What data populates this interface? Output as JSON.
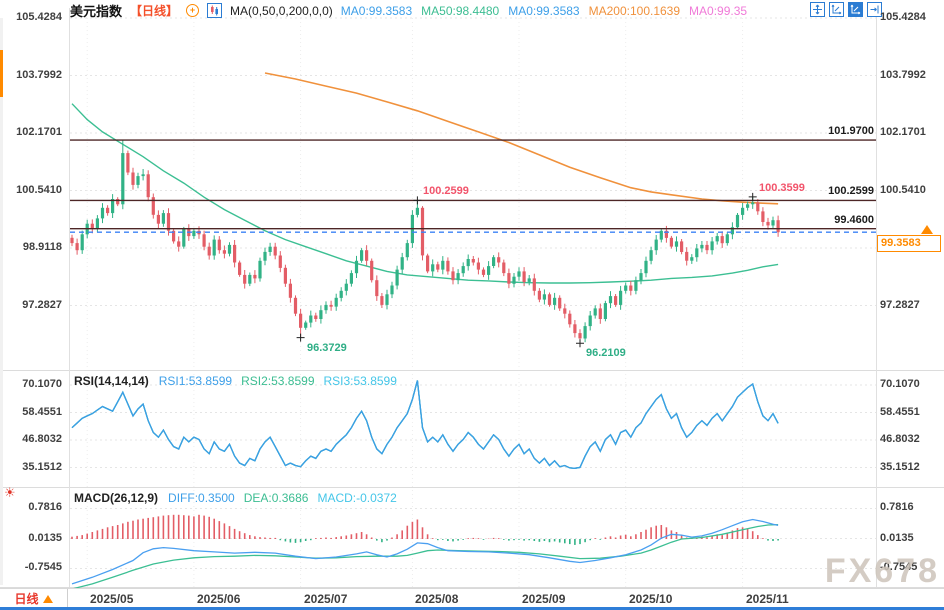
{
  "header": {
    "title": "美元指数",
    "period": "【日线】",
    "plus_icon": "+",
    "ma_settings": "MA(0,50,0,200,0,0)",
    "ma_values": [
      {
        "label": "MA0:99.3583",
        "color": "#3d9fe8"
      },
      {
        "label": "MA50:98.4480",
        "color": "#3cbd92"
      },
      {
        "label": "MA0:99.3583",
        "color": "#3d9fe8"
      },
      {
        "label": "MA200:100.1639",
        "color": "#f0913c"
      },
      {
        "label": "MA0:99.35",
        "color": "#f07ad8"
      }
    ],
    "toolbar_icons": [
      "move-tool",
      "axis-range",
      "axis-range-active",
      "goto-latest"
    ]
  },
  "main_panel": {
    "y_ticks": [
      105.4284,
      103.7992,
      102.1701,
      100.541,
      98.9118,
      97.2827
    ],
    "price_lines": [
      {
        "value": 101.97,
        "label": "101.9700"
      },
      {
        "value": 100.2599,
        "label": "100.2599"
      },
      {
        "value": 99.46,
        "label": "99.4600"
      }
    ],
    "markers": [
      {
        "d": 68,
        "price": 100.2599,
        "pos": "top",
        "label": "100.2599",
        "color": "#f2546b"
      },
      {
        "d": 134,
        "price": 100.3599,
        "pos": "top",
        "label": "100.3599",
        "color": "#f2546b"
      },
      {
        "d": 45,
        "price": 96.3729,
        "pos": "bottom",
        "label": "96.3729",
        "color": "#2fae86"
      },
      {
        "d": 100,
        "price": 96.2109,
        "pos": "bottom",
        "label": "96.2109",
        "color": "#2fae86"
      }
    ],
    "current_price": {
      "value": "99.3583",
      "price": 99.3583,
      "color": "#ff8a00"
    }
  },
  "rsi_panel": {
    "title": "RSI(14,14,14)",
    "values": [
      {
        "label": "RSI1:53.8599",
        "color": "#3d9fe8"
      },
      {
        "label": "RSI2:53.8599",
        "color": "#3cbd92"
      },
      {
        "label": "RSI3:53.8599",
        "color": "#45c6e8"
      }
    ],
    "y_ticks": [
      70.107,
      58.4551,
      46.8032,
      35.1512
    ]
  },
  "macd_panel": {
    "title": "MACD(26,12,9)",
    "values": [
      {
        "label": "DIFF:0.3500",
        "color": "#3d9fe8"
      },
      {
        "label": "DEA:0.3686",
        "color": "#3cbd92"
      },
      {
        "label": "MACD:-0.0372",
        "color": "#45c6e8"
      }
    ],
    "y_ticks": [
      0.7816,
      0.0135,
      -0.7545
    ]
  },
  "bottom_bar": {
    "period_label": "日线",
    "months": [
      {
        "label": "2025/05",
        "d": 3
      },
      {
        "label": "2025/06",
        "d": 24
      },
      {
        "label": "2025/07",
        "d": 45
      },
      {
        "label": "2025/08",
        "d": 67
      },
      {
        "label": "2025/09",
        "d": 88
      },
      {
        "label": "2025/10",
        "d": 109
      },
      {
        "label": "2025/11",
        "d": 132
      }
    ]
  },
  "watermark": "FX678",
  "chart_data": {
    "type": "candlestick",
    "instrument": "美元指数",
    "timeframe": "日线",
    "candles": {
      "first_open": 99.2,
      "closes": [
        99.05,
        98.85,
        99.3,
        99.6,
        99.45,
        99.75,
        100.05,
        99.9,
        100.3,
        100.15,
        101.6,
        101.05,
        100.7,
        100.95,
        101.0,
        100.35,
        99.85,
        99.6,
        99.9,
        99.4,
        99.1,
        98.95,
        99.45,
        99.25,
        99.4,
        99.3,
        98.95,
        98.7,
        99.15,
        98.85,
        98.75,
        99.0,
        98.5,
        98.15,
        97.9,
        98.15,
        98.05,
        98.55,
        98.8,
        98.95,
        98.7,
        98.35,
        97.9,
        97.5,
        97.05,
        96.65,
        96.8,
        97.0,
        96.9,
        97.15,
        97.3,
        97.25,
        97.5,
        97.7,
        97.9,
        98.2,
        98.55,
        98.85,
        98.55,
        98.0,
        97.55,
        97.3,
        97.6,
        97.85,
        98.3,
        98.65,
        99.05,
        99.85,
        100.05,
        98.7,
        98.25,
        98.45,
        98.3,
        98.55,
        98.25,
        98.0,
        98.2,
        98.4,
        98.6,
        98.5,
        98.3,
        98.15,
        98.4,
        98.65,
        98.5,
        98.2,
        97.9,
        98.1,
        98.25,
        97.95,
        98.05,
        97.7,
        97.45,
        97.6,
        97.3,
        97.5,
        97.2,
        97.05,
        96.75,
        96.5,
        96.35,
        96.7,
        97.0,
        97.2,
        96.9,
        97.35,
        97.55,
        97.3,
        97.7,
        97.85,
        97.7,
        98.0,
        98.2,
        98.55,
        98.85,
        99.15,
        99.4,
        99.2,
        98.95,
        99.1,
        98.8,
        98.55,
        98.65,
        98.9,
        99.0,
        98.85,
        99.1,
        99.25,
        99.05,
        99.3,
        99.5,
        99.85,
        100.05,
        100.15,
        100.2,
        99.95,
        99.65,
        99.55,
        99.7,
        99.36
      ],
      "wick_overrides": {
        "10": {
          "h": 101.97
        },
        "14": {
          "h": 101.15
        },
        "45": {
          "l": 96.3729
        },
        "68": {
          "h": 100.2599
        },
        "69": {
          "h": 100.1
        },
        "100": {
          "l": 96.2109
        },
        "134": {
          "h": 100.3599
        }
      }
    },
    "ma50": [
      [
        0,
        103.0
      ],
      [
        3,
        102.55
      ],
      [
        6,
        102.2
      ],
      [
        10,
        101.85
      ],
      [
        14,
        101.5
      ],
      [
        18,
        101.1
      ],
      [
        22,
        100.75
      ],
      [
        26,
        100.35
      ],
      [
        30,
        100.0
      ],
      [
        34,
        99.7
      ],
      [
        38,
        99.4
      ],
      [
        42,
        99.15
      ],
      [
        46,
        98.95
      ],
      [
        50,
        98.75
      ],
      [
        54,
        98.55
      ],
      [
        58,
        98.4
      ],
      [
        62,
        98.25
      ],
      [
        66,
        98.15
      ],
      [
        70,
        98.1
      ],
      [
        74,
        98.05
      ],
      [
        78,
        98.0
      ],
      [
        82,
        97.98
      ],
      [
        86,
        97.95
      ],
      [
        90,
        97.93
      ],
      [
        94,
        97.92
      ],
      [
        98,
        97.92
      ],
      [
        102,
        97.93
      ],
      [
        106,
        97.95
      ],
      [
        110,
        97.97
      ],
      [
        114,
        98.0
      ],
      [
        118,
        98.05
      ],
      [
        122,
        98.08
      ],
      [
        126,
        98.12
      ],
      [
        130,
        98.2
      ],
      [
        133,
        98.28
      ],
      [
        136,
        98.38
      ],
      [
        139,
        98.448
      ]
    ],
    "ma200": [
      [
        38,
        103.87
      ],
      [
        44,
        103.7
      ],
      [
        50,
        103.5
      ],
      [
        56,
        103.3
      ],
      [
        62,
        103.05
      ],
      [
        68,
        102.8
      ],
      [
        74,
        102.5
      ],
      [
        80,
        102.2
      ],
      [
        86,
        101.9
      ],
      [
        92,
        101.55
      ],
      [
        98,
        101.2
      ],
      [
        104,
        100.9
      ],
      [
        110,
        100.62
      ],
      [
        114,
        100.5
      ],
      [
        118,
        100.42
      ],
      [
        124,
        100.3
      ],
      [
        128,
        100.25
      ],
      [
        132,
        100.21
      ],
      [
        136,
        100.18
      ],
      [
        139,
        100.164
      ]
    ],
    "rsi": [
      52,
      54,
      56,
      57,
      58,
      59.5,
      61,
      60,
      59,
      63,
      67,
      62,
      57,
      60,
      62,
      55,
      50,
      48,
      51,
      47,
      44,
      43,
      48,
      46,
      48,
      47,
      43,
      41,
      46,
      43,
      42,
      45,
      40,
      37,
      36,
      39,
      38,
      43,
      46,
      48,
      44,
      40,
      36,
      37,
      36,
      35.5,
      38,
      40,
      39,
      42,
      43,
      42,
      45,
      47,
      49,
      52,
      56,
      59,
      55,
      48,
      43,
      41,
      45,
      48,
      52,
      55,
      58,
      64,
      72,
      52,
      46,
      48,
      46,
      49,
      45,
      42,
      45,
      47,
      50,
      48,
      45,
      43,
      46,
      49,
      47,
      43,
      40,
      43,
      45,
      41,
      43,
      39,
      37,
      39,
      36,
      38,
      35.5,
      36,
      35,
      34.8,
      35.2,
      40,
      44,
      46,
      42,
      47,
      49,
      45,
      50,
      51,
      48,
      52,
      54,
      58,
      61,
      64,
      66,
      60,
      56,
      58,
      52,
      48,
      50,
      53,
      55,
      53,
      56,
      58,
      55,
      58,
      61,
      65,
      67,
      69,
      70.5,
      63,
      57,
      55,
      58,
      53.86
    ],
    "macd_hist": [
      0.06,
      0.08,
      0.1,
      0.14,
      0.18,
      0.22,
      0.26,
      0.3,
      0.33,
      0.36,
      0.4,
      0.44,
      0.47,
      0.5,
      0.52,
      0.54,
      0.56,
      0.58,
      0.6,
      0.61,
      0.62,
      0.62,
      0.61,
      0.6,
      0.58,
      0.62,
      0.6,
      0.57,
      0.52,
      0.46,
      0.4,
      0.33,
      0.26,
      0.2,
      0.15,
      0.1,
      0.07,
      0.05,
      0.04,
      0.03,
      0.03,
      -0.03,
      -0.06,
      -0.09,
      -0.1,
      -0.08,
      -0.05,
      -0.03,
      0.02,
      0.03,
      0.04,
      0.03,
      0.05,
      0.07,
      0.09,
      0.12,
      0.15,
      0.18,
      0.12,
      0.04,
      -0.04,
      -0.08,
      -0.04,
      0.04,
      0.12,
      0.22,
      0.34,
      0.44,
      0.5,
      0.3,
      0.12,
      0.02,
      -0.03,
      -0.02,
      -0.05,
      -0.06,
      -0.04,
      -0.02,
      0.02,
      0.03,
      0.02,
      -0.02,
      0.01,
      0.03,
      0.02,
      -0.02,
      -0.04,
      -0.03,
      -0.02,
      -0.04,
      -0.03,
      -0.05,
      -0.07,
      -0.05,
      -0.08,
      -0.06,
      -0.09,
      -0.11,
      -0.13,
      -0.15,
      -0.13,
      -0.08,
      -0.03,
      0.02,
      -0.02,
      0.04,
      0.07,
      0.04,
      0.09,
      0.11,
      0.07,
      0.12,
      0.18,
      0.24,
      0.3,
      0.34,
      0.36,
      0.3,
      0.22,
      0.18,
      0.1,
      0.04,
      0.02,
      0.04,
      0.06,
      0.04,
      0.08,
      0.12,
      0.1,
      0.16,
      0.22,
      0.28,
      0.3,
      0.26,
      0.2,
      0.1,
      0.02,
      -0.04,
      -0.05,
      -0.0372
    ],
    "macd_diff": [
      [
        0,
        -1.15
      ],
      [
        4,
        -0.98
      ],
      [
        8,
        -0.78
      ],
      [
        12,
        -0.55
      ],
      [
        14,
        -0.35
      ],
      [
        16,
        -0.25
      ],
      [
        18,
        -0.22
      ],
      [
        20,
        -0.24
      ],
      [
        24,
        -0.3
      ],
      [
        28,
        -0.33
      ],
      [
        32,
        -0.36
      ],
      [
        36,
        -0.34
      ],
      [
        40,
        -0.36
      ],
      [
        44,
        -0.44
      ],
      [
        48,
        -0.5
      ],
      [
        52,
        -0.46
      ],
      [
        56,
        -0.38
      ],
      [
        58,
        -0.33
      ],
      [
        60,
        -0.4
      ],
      [
        62,
        -0.46
      ],
      [
        64,
        -0.38
      ],
      [
        66,
        -0.26
      ],
      [
        68,
        -0.1
      ],
      [
        70,
        -0.12
      ],
      [
        72,
        -0.22
      ],
      [
        74,
        -0.3
      ],
      [
        78,
        -0.32
      ],
      [
        82,
        -0.33
      ],
      [
        86,
        -0.36
      ],
      [
        90,
        -0.4
      ],
      [
        94,
        -0.48
      ],
      [
        98,
        -0.57
      ],
      [
        100,
        -0.6
      ],
      [
        103,
        -0.55
      ],
      [
        106,
        -0.48
      ],
      [
        109,
        -0.4
      ],
      [
        112,
        -0.28
      ],
      [
        114,
        -0.15
      ],
      [
        116,
        0.02
      ],
      [
        118,
        0.12
      ],
      [
        120,
        0.1
      ],
      [
        122,
        0.05
      ],
      [
        124,
        0.08
      ],
      [
        126,
        0.15
      ],
      [
        128,
        0.24
      ],
      [
        130,
        0.34
      ],
      [
        132,
        0.44
      ],
      [
        134,
        0.5
      ],
      [
        136,
        0.45
      ],
      [
        138,
        0.38
      ],
      [
        139,
        0.35
      ]
    ],
    "macd_dea": [
      [
        0,
        -1.28
      ],
      [
        4,
        -1.15
      ],
      [
        8,
        -0.98
      ],
      [
        12,
        -0.8
      ],
      [
        16,
        -0.64
      ],
      [
        20,
        -0.54
      ],
      [
        24,
        -0.48
      ],
      [
        28,
        -0.45
      ],
      [
        32,
        -0.44
      ],
      [
        36,
        -0.42
      ],
      [
        40,
        -0.43
      ],
      [
        44,
        -0.46
      ],
      [
        48,
        -0.49
      ],
      [
        52,
        -0.48
      ],
      [
        56,
        -0.45
      ],
      [
        60,
        -0.44
      ],
      [
        64,
        -0.44
      ],
      [
        66,
        -0.42
      ],
      [
        68,
        -0.36
      ],
      [
        70,
        -0.3
      ],
      [
        72,
        -0.28
      ],
      [
        76,
        -0.3
      ],
      [
        80,
        -0.31
      ],
      [
        84,
        -0.32
      ],
      [
        88,
        -0.34
      ],
      [
        92,
        -0.38
      ],
      [
        96,
        -0.44
      ],
      [
        100,
        -0.5
      ],
      [
        104,
        -0.49
      ],
      [
        108,
        -0.44
      ],
      [
        112,
        -0.36
      ],
      [
        114,
        -0.28
      ],
      [
        116,
        -0.18
      ],
      [
        118,
        -0.08
      ],
      [
        120,
        0.0
      ],
      [
        124,
        0.04
      ],
      [
        128,
        0.12
      ],
      [
        132,
        0.24
      ],
      [
        135,
        0.32
      ],
      [
        137,
        0.36
      ],
      [
        139,
        0.3686
      ]
    ],
    "colors": {
      "up": "#31b286",
      "down": "#e35d66",
      "ma50": "#3cbf93",
      "ma200": "#f0913c",
      "rsi1": "#3b9de8",
      "rsi2": "#3cbd92",
      "rsi3": "#45c6e8",
      "diff": "#4a9ff0",
      "dea": "#3cbf93",
      "price_line": "#4d2626",
      "current_line": "#3b82f6"
    }
  }
}
